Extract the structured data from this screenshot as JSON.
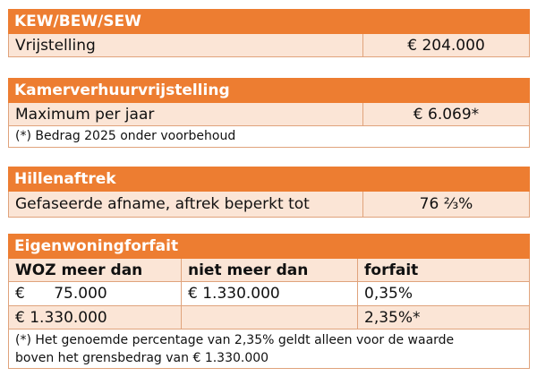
{
  "colors": {
    "header_orange": "#ed7d31",
    "row_peach": "#fbe5d6",
    "border": "#e0a37c"
  },
  "kew": {
    "title": "KEW/BEW/SEW",
    "label": "Vrijstelling",
    "value": "€ 204.000"
  },
  "kamer": {
    "title": "Kamerverhuurvrijstelling",
    "label": "Maximum per jaar",
    "value": "€ 6.069*",
    "note": "(*)  Bedrag 2025 onder voorbehoud"
  },
  "hillen": {
    "title": "Hillenaftrek",
    "label": "Gefaseerde afname, aftrek beperkt tot",
    "value": "76 ⅔%"
  },
  "ewf": {
    "title": "Eigenwoningforfait",
    "headers": [
      "WOZ meer dan",
      "niet meer dan",
      "forfait"
    ],
    "rows": [
      [
        "€      75.000",
        "€ 1.330.000",
        "0,35%"
      ],
      [
        "€ 1.330.000",
        "",
        "2,35%*"
      ]
    ],
    "note_line1": "(*) Het genoemde percentage van 2,35% geldt alleen voor de waarde",
    "note_line2": "boven het grensbedrag van € 1.330.000"
  }
}
